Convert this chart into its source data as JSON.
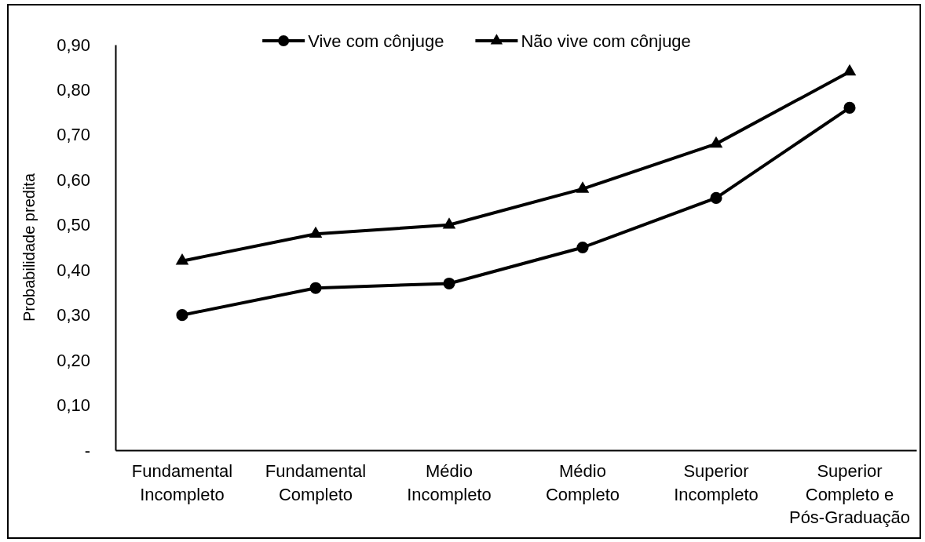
{
  "chart_data": {
    "type": "line",
    "ylabel": "Probabilidade predita",
    "legend": "top",
    "categories": [
      "Fundamental Incompleto",
      "Fundamental Completo",
      "Médio Incompleto",
      "Médio Completo",
      "Superior Incompleto",
      "Superior Completo e Pós-Graduação"
    ],
    "ylim": [
      0,
      0.9
    ],
    "yticks": [
      {
        "value": 0,
        "label": "-"
      },
      {
        "value": 0.1,
        "label": "0,10"
      },
      {
        "value": 0.2,
        "label": "0,20"
      },
      {
        "value": 0.3,
        "label": "0,30"
      },
      {
        "value": 0.4,
        "label": "0,40"
      },
      {
        "value": 0.5,
        "label": "0,50"
      },
      {
        "value": 0.6,
        "label": "0,60"
      },
      {
        "value": 0.7,
        "label": "0,70"
      },
      {
        "value": 0.8,
        "label": "0,80"
      },
      {
        "value": 0.9,
        "label": "0,90"
      }
    ],
    "series": [
      {
        "name": "Vive com cônjuge",
        "color": "#000000",
        "marker": "circle",
        "values": [
          0.3,
          0.36,
          0.37,
          0.45,
          0.56,
          0.76
        ]
      },
      {
        "name": "Não vive com cônjuge",
        "color": "#000000",
        "marker": "triangle",
        "values": [
          0.42,
          0.48,
          0.5,
          0.58,
          0.68,
          0.84
        ]
      }
    ]
  }
}
